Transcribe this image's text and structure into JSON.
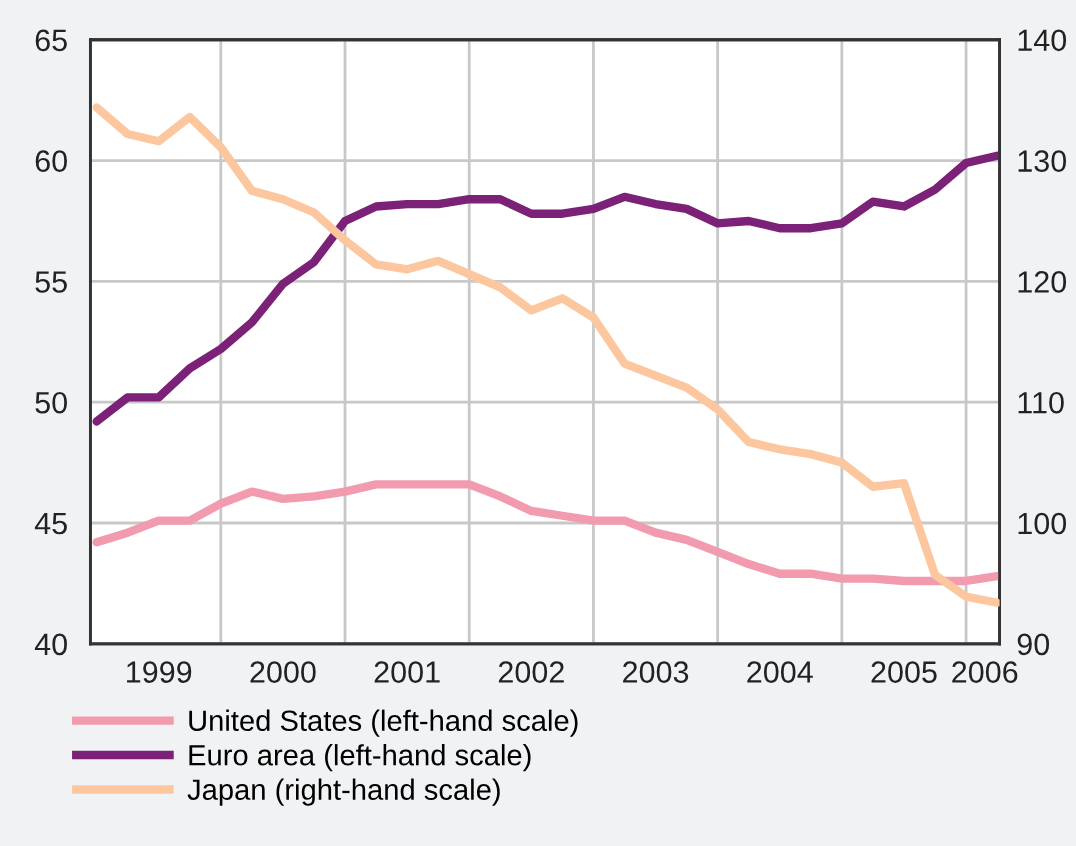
{
  "chart_data": {
    "type": "line",
    "x": [
      1999.0,
      1999.25,
      1999.5,
      1999.75,
      2000.0,
      2000.25,
      2000.5,
      2000.75,
      2001.0,
      2001.25,
      2001.5,
      2001.75,
      2002.0,
      2002.25,
      2002.5,
      2002.75,
      2003.0,
      2003.25,
      2003.5,
      2003.75,
      2004.0,
      2004.25,
      2004.5,
      2004.75,
      2005.0,
      2005.25,
      2005.5,
      2005.75,
      2006.0,
      2006.25
    ],
    "series": [
      {
        "name": "United States (left-hand scale)",
        "color": "#f29aae",
        "values": [
          44.2,
          44.6,
          45.1,
          45.1,
          45.8,
          46.3,
          46.0,
          46.1,
          46.3,
          46.6,
          46.6,
          46.6,
          46.6,
          46.1,
          45.5,
          45.3,
          45.1,
          45.1,
          44.6,
          44.3,
          43.8,
          43.3,
          42.9,
          42.9,
          42.7,
          42.7,
          42.6,
          42.6,
          42.6,
          42.8
        ]
      },
      {
        "name": "Euro area (left-hand scale)",
        "color": "#7b2177",
        "values": [
          49.2,
          50.2,
          50.2,
          51.4,
          52.2,
          53.3,
          54.9,
          55.8,
          57.5,
          58.1,
          58.2,
          58.2,
          58.4,
          58.4,
          57.8,
          57.8,
          58.0,
          58.5,
          58.2,
          58.0,
          57.4,
          57.5,
          57.2,
          57.2,
          57.4,
          58.3,
          58.1,
          58.8,
          59.9,
          60.2
        ]
      },
      {
        "name": "Japan (right-hand scale)",
        "color": "#fcc79e",
        "axis": "y2",
        "values": [
          134.4,
          132.2,
          131.6,
          133.6,
          131.1,
          127.5,
          126.8,
          125.7,
          123.4,
          121.4,
          121.0,
          121.7,
          120.6,
          119.5,
          117.6,
          118.6,
          117.0,
          113.2,
          112.2,
          111.2,
          109.4,
          106.7,
          106.1,
          105.7,
          105.0,
          103.0,
          103.3,
          95.7,
          93.9,
          93.4
        ]
      }
    ],
    "xlim": [
      1998.95,
      2006.27
    ],
    "xticks": [
      {
        "value": 1999.5,
        "label": "1999"
      },
      {
        "value": 2000,
        "label": null
      },
      {
        "value": 2000.5,
        "label": "2000"
      },
      {
        "value": 2001,
        "label": null
      },
      {
        "value": 2001.5,
        "label": "2001"
      },
      {
        "value": 2002,
        "label": null
      },
      {
        "value": 2002.5,
        "label": "2002"
      },
      {
        "value": 2003,
        "label": null
      },
      {
        "value": 2003.5,
        "label": "2003"
      },
      {
        "value": 2004,
        "label": null
      },
      {
        "value": 2004.5,
        "label": "2004"
      },
      {
        "value": 2005,
        "label": null
      },
      {
        "value": 2005.5,
        "label": "2005"
      },
      {
        "value": 2006,
        "label": null
      },
      {
        "value": 2006.15,
        "label": "2006"
      }
    ],
    "ylim": [
      40,
      65
    ],
    "yticks": [
      40,
      45,
      50,
      55,
      60,
      65
    ],
    "y2lim": [
      90,
      140
    ],
    "y2ticks": [
      90,
      100,
      110,
      120,
      130,
      140
    ],
    "grid": true,
    "legend": "bottom",
    "line_style": "solid"
  }
}
